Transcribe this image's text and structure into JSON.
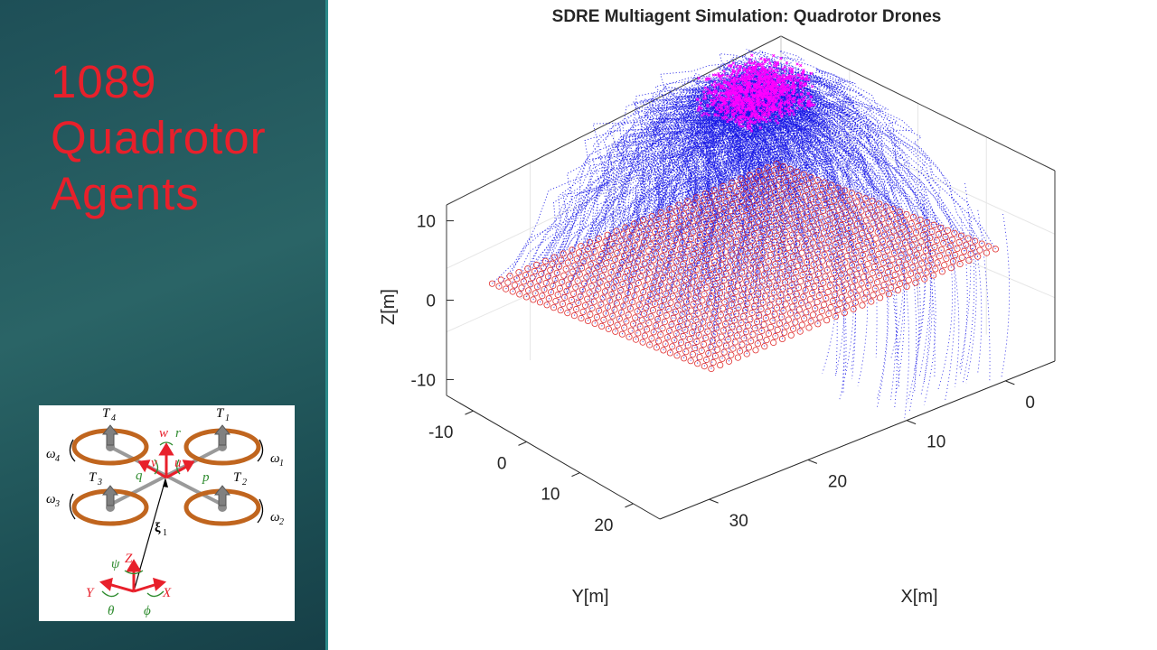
{
  "slide": {
    "title": "1089\nQuadrotor\nAgents",
    "colors": {
      "panel_bg": "#235a5e",
      "title": "#e8202b"
    }
  },
  "diagram": {
    "labels": {
      "T1": "T",
      "T1_sub": "1",
      "T2": "T",
      "T2_sub": "2",
      "T3": "T",
      "T3_sub": "3",
      "T4": "T",
      "T4_sub": "4",
      "w1": "ω",
      "w1_sub": "1",
      "w2": "ω",
      "w2_sub": "2",
      "w3": "ω",
      "w3_sub": "3",
      "w4": "ω",
      "w4_sub": "4",
      "w": "w",
      "r": "r",
      "v": "v",
      "u": "u",
      "q": "q",
      "p": "p",
      "xi": "ξ",
      "xi_sub": "1",
      "psi": "ψ",
      "Z": "Z",
      "Y": "Y",
      "X": "X",
      "theta": "θ",
      "phi": "ϕ"
    },
    "colors": {
      "rotor": "#c0651e",
      "frame_red": "#e8202b",
      "green": "#2e8b2e"
    }
  },
  "chart_data": {
    "type": "scatter",
    "title": "SDRE Multiagent Simulation: Quadrotor Drones",
    "xlabel": "X[m]",
    "ylabel": "Y[m]",
    "zlabel": "Z[m]",
    "x_ticks": [
      "0",
      "10",
      "20",
      "30"
    ],
    "y_ticks": [
      "-10",
      "0",
      "10",
      "20"
    ],
    "z_ticks": [
      "10",
      "0",
      "-10"
    ],
    "xlim": [
      -5,
      35
    ],
    "ylim": [
      -15,
      25
    ],
    "zlim": [
      -12,
      12
    ],
    "agent_count": 1089,
    "grid_size": 33,
    "series": [
      {
        "role": "start positions",
        "marker": "o",
        "color": "#e03030"
      },
      {
        "role": "trajectories",
        "marker": ".",
        "color": "#1515e6"
      },
      {
        "role": "final positions",
        "marker": "x",
        "color": "#ff00ff"
      }
    ],
    "start_plane": {
      "x_range": [
        -2,
        30
      ],
      "y_range": [
        -12,
        22
      ],
      "z": 0
    },
    "target_cluster": {
      "x_range": [
        -4,
        4
      ],
      "y_range": [
        -12,
        -4
      ],
      "z_range": [
        8,
        12
      ]
    },
    "box": "on",
    "grid": "on"
  }
}
